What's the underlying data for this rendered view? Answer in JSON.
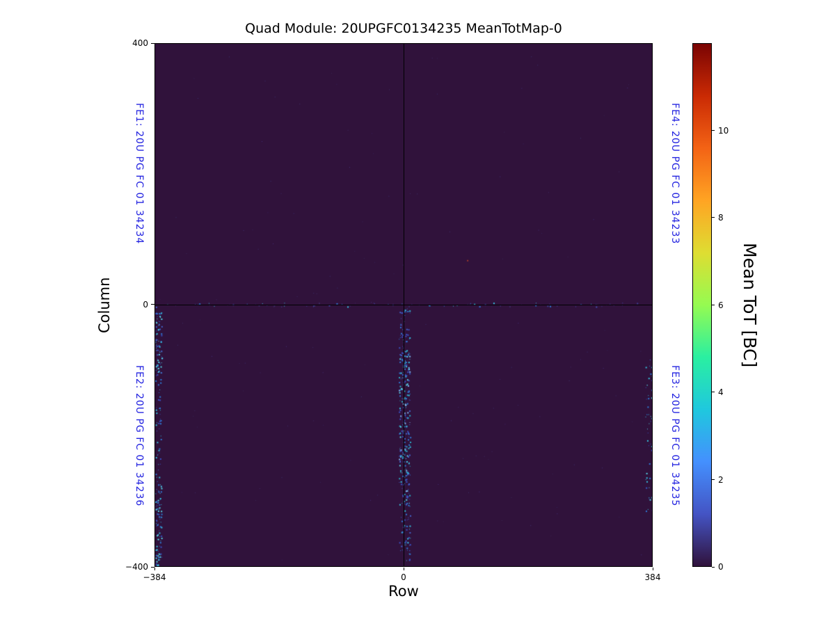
{
  "colors": {
    "fe_label": "#2424e0",
    "plot_background": "#30123b",
    "axis": "#000000",
    "title": "#000000",
    "colorbar_min": "#30123b",
    "colorbar_max": "#7a0403"
  },
  "chart_data": {
    "type": "heatmap",
    "title": "Quad Module: 20UPGFC0134235 MeanTotMap-0",
    "xlabel": "Row",
    "ylabel": "Column",
    "x_range": [
      -384,
      384
    ],
    "y_range": [
      -400,
      400
    ],
    "x_ticks": [
      {
        "label": "−384",
        "frac": 0.0
      },
      {
        "label": "0",
        "frac": 0.5
      },
      {
        "label": "384",
        "frac": 1.0
      }
    ],
    "y_ticks": [
      {
        "label": "400",
        "frac": 0.0
      },
      {
        "label": "0",
        "frac": 0.4987
      },
      {
        "label": "−400",
        "frac": 1.0
      }
    ],
    "crosshair": {
      "x": 0,
      "y": 0
    },
    "colormap": "turbo",
    "value_range": [
      0,
      12
    ],
    "background_value": 0,
    "colormap_stops": [
      "#30123b",
      "#4454c4",
      "#4490fe",
      "#1fc8de",
      "#2aefa1",
      "#95fb51",
      "#dedd32",
      "#ffa423",
      "#f36315",
      "#ca2a04",
      "#7a0403"
    ],
    "colorbar": {
      "label": "Mean ToT [BC]",
      "ticks": [
        {
          "label": "0",
          "value": 0
        },
        {
          "label": "2",
          "value": 2
        },
        {
          "label": "4",
          "value": 4
        },
        {
          "label": "6",
          "value": 6
        },
        {
          "label": "8",
          "value": 8
        },
        {
          "label": "10",
          "value": 10
        }
      ]
    },
    "fe_labels": [
      {
        "id": "FE1",
        "text": "FE1: 20U PG FC 01 34234",
        "side": "left",
        "quadrant": "top"
      },
      {
        "id": "FE2",
        "text": "FE2: 20U PG FC 01 34236",
        "side": "left",
        "quadrant": "bottom"
      },
      {
        "id": "FE3",
        "text": "FE3: 20U PG FC 01 34235",
        "side": "right",
        "quadrant": "bottom"
      },
      {
        "id": "FE4",
        "text": "FE4: 20U PG FC 01 34233",
        "side": "right",
        "quadrant": "top"
      }
    ],
    "speckle_clusters": [
      {
        "name": "center-band-dense",
        "x0": 0.49,
        "x1": 0.513,
        "y0": 0.595,
        "y1": 0.885,
        "count": 240,
        "palette": [
          "#3a53c4",
          "#2f7bd8",
          "#35c4e0",
          "#57d8e8",
          "#7fb8f0",
          "#2bb0c9",
          "#4466cc"
        ],
        "sizes": [
          1,
          2,
          2
        ]
      },
      {
        "name": "center-band-upper",
        "x0": 0.49,
        "x1": 0.513,
        "y0": 0.505,
        "y1": 0.595,
        "count": 50,
        "palette": [
          "#3a53c4",
          "#2f7bd8",
          "#35c4e0",
          "#4466cc"
        ],
        "sizes": [
          1,
          2
        ]
      },
      {
        "name": "center-band-lower",
        "x0": 0.49,
        "x1": 0.513,
        "y0": 0.885,
        "y1": 0.995,
        "count": 45,
        "palette": [
          "#3a53c4",
          "#2f7bd8",
          "#35c4e0",
          "#4466cc"
        ],
        "sizes": [
          1,
          2
        ]
      },
      {
        "name": "left-edge-upper",
        "x0": 0.0,
        "x1": 0.013,
        "y0": 0.5,
        "y1": 0.63,
        "count": 80,
        "palette": [
          "#3a53c4",
          "#2f7bd8",
          "#35c4e0",
          "#57d8e8",
          "#4466cc"
        ],
        "sizes": [
          1,
          2
        ]
      },
      {
        "name": "left-edge-mid",
        "x0": 0.0,
        "x1": 0.011,
        "y0": 0.63,
        "y1": 0.84,
        "count": 45,
        "palette": [
          "#3a53c4",
          "#2f7bd8",
          "#35c4e0"
        ],
        "sizes": [
          1,
          2
        ]
      },
      {
        "name": "left-edge-bottom",
        "x0": 0.0,
        "x1": 0.013,
        "y0": 0.84,
        "y1": 1.0,
        "count": 85,
        "palette": [
          "#3a53c4",
          "#2f7bd8",
          "#35c4e0",
          "#57d8e8"
        ],
        "sizes": [
          1,
          2
        ]
      },
      {
        "name": "right-edge",
        "x0": 0.986,
        "x1": 1.0,
        "y0": 0.6,
        "y1": 0.9,
        "count": 50,
        "palette": [
          "#3a53c4",
          "#2f7bd8",
          "#35c4e0",
          "#57d8e8"
        ],
        "sizes": [
          1,
          2
        ]
      },
      {
        "name": "horizontal-zero-line",
        "x0": 0.005,
        "x1": 0.995,
        "y0": 0.4955,
        "y1": 0.503,
        "count": 80,
        "palette": [
          "#3c3f93",
          "#4450b0",
          "#2f7bd8",
          "#35c4e0",
          "#3a2a60"
        ],
        "sizes": [
          1,
          1,
          2
        ]
      },
      {
        "name": "sparse-noise",
        "x0": 0.003,
        "x1": 0.997,
        "y0": 0.005,
        "y1": 0.995,
        "count": 140,
        "palette": [
          "#3a2a55",
          "#3d3470",
          "#44337a",
          "#38265a",
          "#402e66"
        ],
        "sizes": [
          1
        ]
      },
      {
        "name": "red-dot",
        "x0": 0.627,
        "x1": 0.63,
        "y0": 0.41,
        "y1": 0.414,
        "count": 1,
        "palette": [
          "#a33c2a"
        ],
        "sizes": [
          2
        ]
      }
    ]
  }
}
